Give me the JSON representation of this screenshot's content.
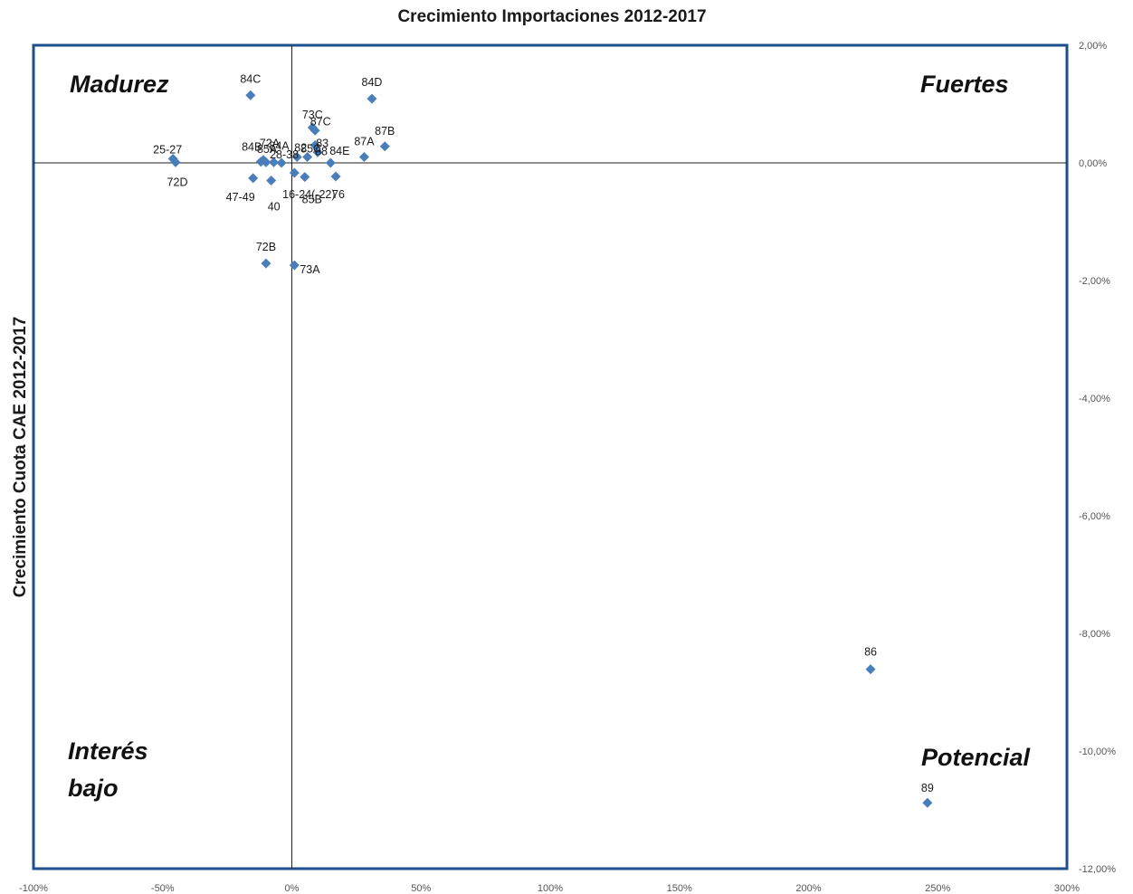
{
  "chart_data": {
    "type": "scatter",
    "title": "Crecimiento  Importaciones  2012-2017",
    "xlabel": "",
    "ylabel": "Crecimiento Cuota  CAE 2012-2017",
    "xlim": [
      -1.0,
      3.0
    ],
    "ylim": [
      -0.12,
      0.02
    ],
    "x_ticks": [
      "-100%",
      "-50%",
      "0%",
      "50%",
      "100%",
      "150%",
      "200%",
      "250%",
      "300%"
    ],
    "y_ticks": [
      "2,00%",
      "0,00%",
      "-2,00%",
      "-4,00%",
      "-6,00%",
      "-8,00%",
      "-10,00%",
      "-12,00%"
    ],
    "grid": false,
    "legend": "none",
    "marker_color": "#4a7ebb",
    "frame_color": "#1f4e8c",
    "quadrant_labels": {
      "top_left": "Madurez",
      "top_right": "Fuertes",
      "bottom_left_1": "Interés",
      "bottom_left_2": "bajo",
      "bottom_right": "Potencial"
    },
    "points": [
      {
        "label": "84C",
        "x": -0.16,
        "y": 0.0115
      },
      {
        "label": "84D",
        "x": 0.31,
        "y": 0.0109
      },
      {
        "label": "73C",
        "x": 0.08,
        "y": 0.006
      },
      {
        "label": "87C",
        "x": 0.09,
        "y": 0.0055
      },
      {
        "label": "87B",
        "x": 0.36,
        "y": 0.0028
      },
      {
        "label": "87A",
        "x": 0.28,
        "y": 0.001
      },
      {
        "label": "85A",
        "x": -0.11,
        "y": 0.0005
      },
      {
        "label": "82",
        "x": 0.02,
        "y": 0.001
      },
      {
        "label": "83",
        "x": 0.09,
        "y": 0.003
      },
      {
        "label": "88",
        "x": 0.1,
        "y": 0.0018
      },
      {
        "label": "84E",
        "x": 0.15,
        "y": 0.0
      },
      {
        "label": "84B",
        "x": -0.12,
        "y": 0.0002
      },
      {
        "label": "72A",
        "x": -0.1,
        "y": 0.0001
      },
      {
        "label": "28-38",
        "x": -0.04,
        "y": 0.0
      },
      {
        "label": "84A",
        "x": -0.07,
        "y": 0.0001
      },
      {
        "label": "85C",
        "x": 0.06,
        "y": 0.001
      },
      {
        "label": "25-27",
        "x": -0.46,
        "y": 0.0007
      },
      {
        "label": "72D",
        "x": -0.45,
        "y": 0.0001
      },
      {
        "label": "47-49",
        "x": -0.15,
        "y": -0.0026
      },
      {
        "label": "40",
        "x": -0.08,
        "y": -0.003
      },
      {
        "label": "16-24(-22)",
        "x": 0.01,
        "y": -0.0017
      },
      {
        "label": "85B",
        "x": 0.05,
        "y": -0.0024
      },
      {
        "label": "76",
        "x": 0.17,
        "y": -0.0023
      },
      {
        "label": "72B",
        "x": -0.1,
        "y": -0.0171
      },
      {
        "label": "73A",
        "x": 0.01,
        "y": -0.0174
      },
      {
        "label": "86",
        "x": 2.24,
        "y": -0.0861
      },
      {
        "label": "89",
        "x": 2.46,
        "y": -0.1088
      }
    ]
  }
}
